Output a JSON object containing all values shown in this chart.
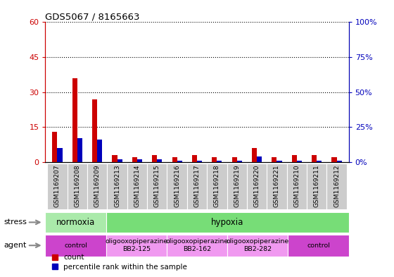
{
  "title": "GDS5067 / 8165663",
  "samples": [
    "GSM1169207",
    "GSM1169208",
    "GSM1169209",
    "GSM1169213",
    "GSM1169214",
    "GSM1169215",
    "GSM1169216",
    "GSM1169217",
    "GSM1169218",
    "GSM1169219",
    "GSM1169220",
    "GSM1169221",
    "GSM1169210",
    "GSM1169211",
    "GSM1169212"
  ],
  "count_values": [
    13,
    36,
    27,
    3,
    2,
    3,
    2,
    3,
    2,
    2,
    6,
    2,
    3,
    3,
    2
  ],
  "percentile_values": [
    10,
    17,
    16,
    2,
    2,
    2,
    1,
    1,
    1,
    1,
    4,
    1,
    1,
    1,
    1
  ],
  "ylim_left": [
    0,
    60
  ],
  "ylim_right": [
    0,
    100
  ],
  "yticks_left": [
    0,
    15,
    30,
    45,
    60
  ],
  "yticks_right": [
    0,
    25,
    50,
    75,
    100
  ],
  "ytick_labels_left": [
    "0",
    "15",
    "30",
    "45",
    "60"
  ],
  "ytick_labels_right": [
    "0%",
    "25%",
    "50%",
    "75%",
    "100%"
  ],
  "stress_groups": [
    {
      "label": "normoxia",
      "start": 0,
      "end": 3,
      "color": "#aaeaaa"
    },
    {
      "label": "hypoxia",
      "start": 3,
      "end": 15,
      "color": "#77dd77"
    }
  ],
  "agent_groups": [
    {
      "label": "control",
      "start": 0,
      "end": 3,
      "color": "#cc44cc"
    },
    {
      "label": "oligooxopiperazine\nBB2-125",
      "start": 3,
      "end": 6,
      "color": "#f099f0"
    },
    {
      "label": "oligooxopiperazine\nBB2-162",
      "start": 6,
      "end": 9,
      "color": "#f099f0"
    },
    {
      "label": "oligooxopiperazine\nBB2-282",
      "start": 9,
      "end": 12,
      "color": "#f099f0"
    },
    {
      "label": "control",
      "start": 12,
      "end": 15,
      "color": "#cc44cc"
    }
  ],
  "bar_color_red": "#cc0000",
  "bar_color_blue": "#0000bb",
  "background_color": "#ffffff",
  "xticklabel_bg": "#cccccc"
}
